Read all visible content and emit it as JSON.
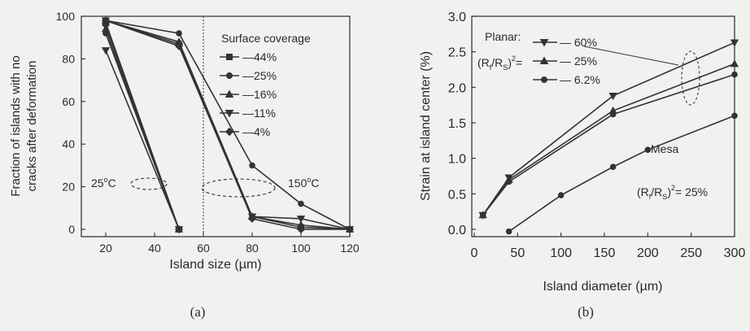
{
  "chart_data": [
    {
      "id": "a",
      "type": "line",
      "caption": "(a)",
      "xlabel": "Island size (µm)",
      "ylabel_lines": [
        "Fraction of islands with no",
        "cracks after deformation"
      ],
      "xlim": [
        10,
        120
      ],
      "ylim": [
        0,
        100
      ],
      "xticks": [
        20,
        40,
        60,
        80,
        100,
        120
      ],
      "yticks": [
        0,
        20,
        40,
        60,
        80,
        100
      ],
      "legend_title": "Surface coverage",
      "legend_placement": "top-right",
      "vline_x": 60,
      "series": [
        {
          "name": "44%",
          "marker": "square",
          "groups": [
            {
              "x": [
                20,
                50
              ],
              "y": [
                97,
                0
              ]
            },
            {
              "x": [
                20,
                50,
                80,
                100,
                120
              ],
              "y": [
                98,
                87,
                6,
                1,
                0
              ]
            }
          ]
        },
        {
          "name": "25%",
          "marker": "circle",
          "groups": [
            {
              "x": [
                20,
                50
              ],
              "y": [
                92,
                0
              ]
            },
            {
              "x": [
                20,
                50,
                80,
                100,
                120
              ],
              "y": [
                98,
                92,
                30,
                12,
                0
              ]
            }
          ]
        },
        {
          "name": "16%",
          "marker": "triangle-up",
          "groups": [
            {
              "x": [
                20,
                50
              ],
              "y": [
                94,
                0
              ]
            },
            {
              "x": [
                20,
                50,
                80,
                100,
                120
              ],
              "y": [
                98,
                88,
                6,
                2,
                0
              ]
            }
          ]
        },
        {
          "name": "11%",
          "marker": "triangle-down",
          "groups": [
            {
              "x": [
                20,
                50
              ],
              "y": [
                84,
                0
              ]
            },
            {
              "x": [
                20,
                50,
                80,
                100,
                120
              ],
              "y": [
                98,
                86,
                6,
                5,
                0
              ]
            }
          ]
        },
        {
          "name": "4%",
          "marker": "diamond",
          "groups": [
            {
              "x": [
                20,
                50
              ],
              "y": [
                96,
                0
              ]
            },
            {
              "x": [
                20,
                50,
                80,
                100,
                120
              ],
              "y": [
                98,
                86,
                5,
                0,
                0
              ]
            }
          ]
        }
      ],
      "annotations": [
        {
          "text": "25",
          "sup": "o",
          "after": "C"
        },
        {
          "text": "150",
          "sup": "o",
          "after": "C"
        }
      ]
    },
    {
      "id": "b",
      "type": "line",
      "caption": "(b)",
      "xlabel": "Island diameter (µm)",
      "ylabel": "Strain at island center (%)",
      "xlim": [
        0,
        300
      ],
      "ylim": [
        -0.1,
        3.0
      ],
      "xticks": [
        0,
        50,
        100,
        150,
        200,
        250,
        300
      ],
      "yticks": [
        0.0,
        0.5,
        1.0,
        1.5,
        2.0,
        2.5,
        3.0
      ],
      "legend_title": "Planar:",
      "legend_prefix": "(R",
      "legend_sub1": "f",
      "legend_mid": "/R",
      "legend_sub2": "S",
      "legend_close": ")",
      "legend_sup": "2",
      "legend_eq": "=",
      "series": [
        {
          "name": "60%",
          "marker": "triangle-down",
          "x": [
            10,
            40,
            160,
            300
          ],
          "y": [
            0.2,
            0.73,
            1.88,
            2.63
          ]
        },
        {
          "name": "25%",
          "marker": "triangle-up",
          "x": [
            10,
            40,
            160,
            300
          ],
          "y": [
            0.2,
            0.7,
            1.67,
            2.33
          ]
        },
        {
          "name": "6.2%",
          "marker": "circle",
          "x": [
            10,
            40,
            160,
            300
          ],
          "y": [
            0.2,
            0.67,
            1.62,
            2.18
          ]
        },
        {
          "name": "Mesa",
          "marker": "circle",
          "x": [
            40,
            100,
            160,
            200,
            300
          ],
          "y": [
            -0.03,
            0.48,
            0.88,
            1.12,
            1.6
          ]
        }
      ],
      "mesa_label": "Mesa",
      "mesa_eq_prefix": "(R",
      "mesa_eq_sub1": "f",
      "mesa_eq_mid": "/R",
      "mesa_eq_sub2": "S",
      "mesa_eq_close": ")",
      "mesa_eq_sup": "2",
      "mesa_eq_value": "= 25%"
    }
  ]
}
